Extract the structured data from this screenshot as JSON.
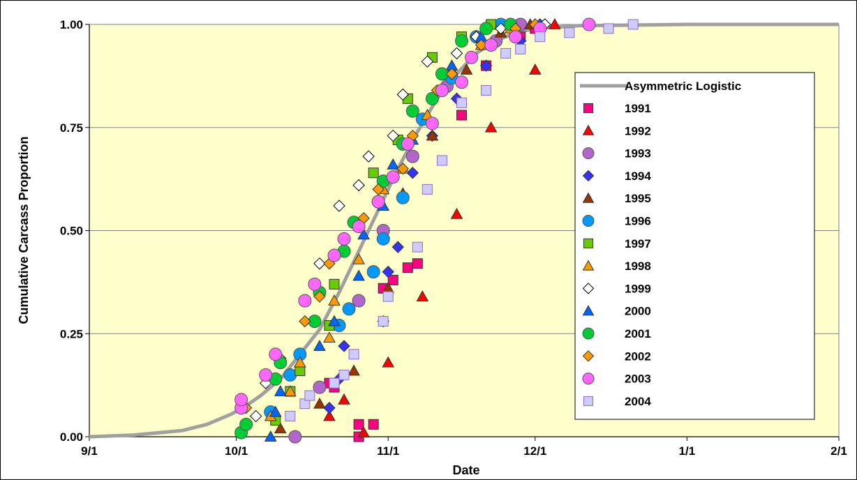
{
  "chart_data": {
    "type": "scatter",
    "title": "",
    "xlabel": "Date",
    "ylabel": "Cumulative Carcass Proportion",
    "x_ticks": [
      "9/1",
      "10/1",
      "11/1",
      "12/1",
      "1/1",
      "2/1"
    ],
    "y_ticks": [
      "0.00",
      "0.25",
      "0.50",
      "0.75",
      "1.00"
    ],
    "xlim": [
      "09-01",
      "02-01"
    ],
    "ylim": [
      0,
      1
    ],
    "grid": "horizontal",
    "legend_position": "right",
    "background_color": "#ffffcc",
    "curve": {
      "name": "Asymmetric  Logistic",
      "color": "#a0a0a0",
      "points": [
        [
          "09-01",
          0.0
        ],
        [
          "09-10",
          0.004
        ],
        [
          "09-20",
          0.015
        ],
        [
          "09-25",
          0.03
        ],
        [
          "09-30",
          0.055
        ],
        [
          "10-03",
          0.075
        ],
        [
          "10-06",
          0.1
        ],
        [
          "10-10",
          0.14
        ],
        [
          "10-14",
          0.2
        ],
        [
          "10-18",
          0.26
        ],
        [
          "10-22",
          0.35
        ],
        [
          "10-26",
          0.45
        ],
        [
          "10-30",
          0.55
        ],
        [
          "11-03",
          0.65
        ],
        [
          "11-07",
          0.74
        ],
        [
          "11-11",
          0.82
        ],
        [
          "11-15",
          0.88
        ],
        [
          "11-19",
          0.93
        ],
        [
          "11-23",
          0.96
        ],
        [
          "11-27",
          0.98
        ],
        [
          "12-01",
          0.99
        ],
        [
          "12-10",
          0.997
        ],
        [
          "12-25",
          0.999
        ],
        [
          "01-01",
          1.0
        ],
        [
          "02-01",
          1.0
        ]
      ]
    },
    "series": [
      {
        "name": "1991",
        "marker": "square",
        "color": "#ff0080",
        "points": [
          [
            "10-26",
            0.0
          ],
          [
            "10-26",
            0.03
          ],
          [
            "10-29",
            0.03
          ],
          [
            "10-20",
            0.13
          ],
          [
            "10-21",
            0.12
          ],
          [
            "10-31",
            0.36
          ],
          [
            "11-02",
            0.38
          ],
          [
            "11-05",
            0.41
          ],
          [
            "11-07",
            0.42
          ],
          [
            "11-16",
            0.78
          ],
          [
            "11-21",
            0.9
          ],
          [
            "11-28",
            0.97
          ],
          [
            "12-01",
            0.99
          ]
        ]
      },
      {
        "name": "1992",
        "marker": "triangle",
        "color": "#ff0000",
        "points": [
          [
            "10-27",
            0.01
          ],
          [
            "10-20",
            0.05
          ],
          [
            "10-23",
            0.09
          ],
          [
            "11-01",
            0.18
          ],
          [
            "11-08",
            0.34
          ],
          [
            "11-15",
            0.54
          ],
          [
            "11-22",
            0.75
          ],
          [
            "12-01",
            0.89
          ],
          [
            "12-05",
            1.0
          ]
        ]
      },
      {
        "name": "1993",
        "marker": "circle",
        "color": "#b266cc",
        "points": [
          [
            "10-13",
            0.0
          ],
          [
            "10-18",
            0.12
          ],
          [
            "10-26",
            0.33
          ],
          [
            "10-31",
            0.5
          ],
          [
            "11-06",
            0.68
          ],
          [
            "11-13",
            0.85
          ],
          [
            "11-23",
            0.96
          ],
          [
            "11-28",
            1.0
          ]
        ]
      },
      {
        "name": "1994",
        "marker": "diamond",
        "color": "#3333ff",
        "points": [
          [
            "10-20",
            0.07
          ],
          [
            "10-22",
            0.14
          ],
          [
            "10-23",
            0.22
          ],
          [
            "10-31",
            0.28
          ],
          [
            "11-01",
            0.4
          ],
          [
            "11-03",
            0.46
          ],
          [
            "11-06",
            0.64
          ],
          [
            "11-10",
            0.73
          ],
          [
            "11-15",
            0.82
          ],
          [
            "11-21",
            0.9
          ],
          [
            "11-28",
            0.96
          ],
          [
            "12-02",
            1.0
          ]
        ]
      },
      {
        "name": "1995",
        "marker": "triangle",
        "color": "#993300",
        "points": [
          [
            "10-10",
            0.02
          ],
          [
            "10-18",
            0.08
          ],
          [
            "10-25",
            0.16
          ],
          [
            "11-01",
            0.36
          ],
          [
            "11-04",
            0.59
          ],
          [
            "11-10",
            0.73
          ],
          [
            "11-17",
            0.89
          ],
          [
            "11-24",
            0.98
          ],
          [
            "11-30",
            1.0
          ]
        ]
      },
      {
        "name": "1996",
        "marker": "circle",
        "color": "#0099ff",
        "points": [
          [
            "10-08",
            0.06
          ],
          [
            "10-12",
            0.15
          ],
          [
            "10-14",
            0.2
          ],
          [
            "10-22",
            0.27
          ],
          [
            "10-24",
            0.31
          ],
          [
            "10-29",
            0.4
          ],
          [
            "10-31",
            0.48
          ],
          [
            "11-04",
            0.58
          ],
          [
            "11-08",
            0.77
          ],
          [
            "11-14",
            0.87
          ],
          [
            "11-19",
            0.97
          ],
          [
            "11-24",
            1.0
          ]
        ]
      },
      {
        "name": "1997",
        "marker": "square",
        "color": "#66cc00",
        "points": [
          [
            "10-09",
            0.04
          ],
          [
            "10-12",
            0.11
          ],
          [
            "10-14",
            0.16
          ],
          [
            "10-20",
            0.27
          ],
          [
            "10-21",
            0.37
          ],
          [
            "10-29",
            0.64
          ],
          [
            "11-03",
            0.72
          ],
          [
            "11-05",
            0.82
          ],
          [
            "11-10",
            0.92
          ],
          [
            "11-16",
            0.97
          ],
          [
            "11-22",
            1.0
          ]
        ]
      },
      {
        "name": "1998",
        "marker": "triangle",
        "color": "#ff9900",
        "points": [
          [
            "10-08",
            0.05
          ],
          [
            "10-12",
            0.11
          ],
          [
            "10-14",
            0.18
          ],
          [
            "10-20",
            0.24
          ],
          [
            "10-21",
            0.33
          ],
          [
            "10-26",
            0.43
          ],
          [
            "10-31",
            0.6
          ],
          [
            "11-04",
            0.65
          ],
          [
            "11-09",
            0.78
          ],
          [
            "11-14",
            0.89
          ],
          [
            "11-20",
            0.95
          ],
          [
            "11-26",
            0.99
          ]
        ]
      },
      {
        "name": "1999",
        "marker": "diamond",
        "color": "#000000",
        "fill": "#ffffff",
        "points": [
          [
            "10-05",
            0.05
          ],
          [
            "10-07",
            0.13
          ],
          [
            "10-10",
            0.19
          ],
          [
            "10-15",
            0.33
          ],
          [
            "10-18",
            0.42
          ],
          [
            "10-22",
            0.56
          ],
          [
            "10-26",
            0.61
          ],
          [
            "10-28",
            0.68
          ],
          [
            "11-02",
            0.73
          ],
          [
            "11-04",
            0.83
          ],
          [
            "11-09",
            0.91
          ],
          [
            "11-15",
            0.93
          ],
          [
            "11-19",
            0.97
          ],
          [
            "11-24",
            0.99
          ],
          [
            "12-03",
            1.0
          ]
        ]
      },
      {
        "name": "2000",
        "marker": "triangle",
        "color": "#0066ff",
        "points": [
          [
            "10-08",
            0.0
          ],
          [
            "10-09",
            0.06
          ],
          [
            "10-10",
            0.11
          ],
          [
            "10-18",
            0.22
          ],
          [
            "10-21",
            0.28
          ],
          [
            "10-26",
            0.39
          ],
          [
            "10-27",
            0.49
          ],
          [
            "10-31",
            0.56
          ],
          [
            "11-02",
            0.66
          ],
          [
            "11-06",
            0.72
          ],
          [
            "11-14",
            0.9
          ],
          [
            "11-20",
            0.97
          ],
          [
            "11-26",
            1.0
          ]
        ]
      },
      {
        "name": "2001",
        "marker": "circle",
        "color": "#00cc33",
        "points": [
          [
            "10-02",
            0.01
          ],
          [
            "10-03",
            0.03
          ],
          [
            "10-09",
            0.14
          ],
          [
            "10-10",
            0.18
          ],
          [
            "10-17",
            0.28
          ],
          [
            "10-18",
            0.35
          ],
          [
            "10-23",
            0.45
          ],
          [
            "10-25",
            0.52
          ],
          [
            "10-30",
            0.57
          ],
          [
            "10-31",
            0.62
          ],
          [
            "11-04",
            0.71
          ],
          [
            "11-06",
            0.79
          ],
          [
            "11-10",
            0.82
          ],
          [
            "11-12",
            0.88
          ],
          [
            "11-16",
            0.96
          ],
          [
            "11-21",
            0.99
          ],
          [
            "11-26",
            1.0
          ]
        ]
      },
      {
        "name": "2002",
        "marker": "diamond",
        "color": "#ff9900",
        "points": [
          [
            "10-03",
            0.07
          ],
          [
            "10-09",
            0.2
          ],
          [
            "10-15",
            0.28
          ],
          [
            "10-18",
            0.34
          ],
          [
            "10-20",
            0.42
          ],
          [
            "10-27",
            0.53
          ],
          [
            "10-30",
            0.6
          ],
          [
            "11-04",
            0.65
          ],
          [
            "11-06",
            0.73
          ],
          [
            "11-11",
            0.84
          ],
          [
            "11-14",
            0.88
          ],
          [
            "11-20",
            0.95
          ],
          [
            "11-27",
            0.99
          ],
          [
            "12-01",
            1.0
          ]
        ]
      },
      {
        "name": "2003",
        "marker": "circle",
        "color": "#ff66ff",
        "points": [
          [
            "10-02",
            0.07
          ],
          [
            "10-02",
            0.09
          ],
          [
            "10-07",
            0.15
          ],
          [
            "10-09",
            0.2
          ],
          [
            "10-15",
            0.33
          ],
          [
            "10-17",
            0.37
          ],
          [
            "10-21",
            0.44
          ],
          [
            "10-23",
            0.48
          ],
          [
            "10-26",
            0.51
          ],
          [
            "10-30",
            0.57
          ],
          [
            "11-02",
            0.63
          ],
          [
            "11-05",
            0.71
          ],
          [
            "11-10",
            0.76
          ],
          [
            "11-12",
            0.84
          ],
          [
            "11-16",
            0.86
          ],
          [
            "11-18",
            0.92
          ],
          [
            "11-22",
            0.95
          ],
          [
            "11-27",
            0.97
          ],
          [
            "12-02",
            0.99
          ],
          [
            "12-12",
            1.0
          ]
        ]
      },
      {
        "name": "2004",
        "marker": "square",
        "color": "#9966cc",
        "fill": "#ccccff",
        "points": [
          [
            "10-12",
            0.05
          ],
          [
            "10-15",
            0.08
          ],
          [
            "10-16",
            0.1
          ],
          [
            "10-21",
            0.13
          ],
          [
            "10-23",
            0.15
          ],
          [
            "10-25",
            0.2
          ],
          [
            "10-31",
            0.28
          ],
          [
            "11-01",
            0.34
          ],
          [
            "11-07",
            0.46
          ],
          [
            "11-09",
            0.6
          ],
          [
            "11-12",
            0.67
          ],
          [
            "11-16",
            0.81
          ],
          [
            "11-21",
            0.84
          ],
          [
            "11-25",
            0.93
          ],
          [
            "11-28",
            0.94
          ],
          [
            "12-02",
            0.97
          ],
          [
            "12-08",
            0.98
          ],
          [
            "12-16",
            0.99
          ],
          [
            "12-21",
            1.0
          ]
        ]
      }
    ]
  }
}
